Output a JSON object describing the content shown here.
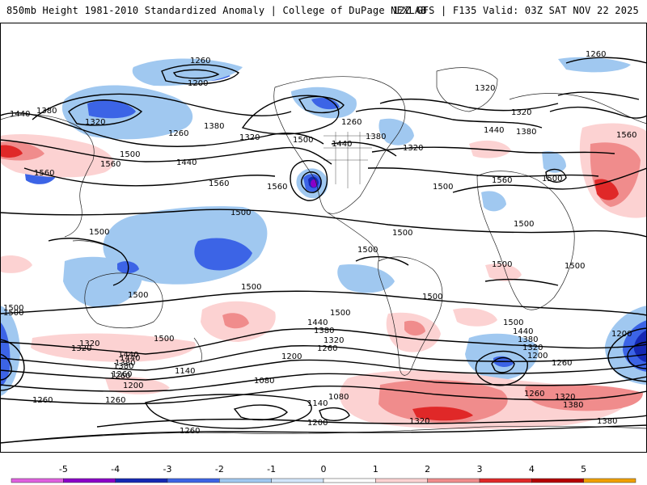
{
  "header": {
    "left": "850mb Height 1981-2010 Standardized Anomaly | College of DuPage NEXLAB",
    "right": "12Z GFS | F135 Valid: 03Z SAT NOV 22 2025"
  },
  "colorbar": {
    "ticks": [
      "-5",
      "-4",
      "-3",
      "-2",
      "-1",
      "0",
      "1",
      "2",
      "3",
      "4",
      "5"
    ],
    "colors": [
      "#e060e0",
      "#8a00c8",
      "#1428b4",
      "#3c64e6",
      "#a0c8f0",
      "#d2e6fa",
      "#ffffff",
      "#fcd2d2",
      "#f08c8c",
      "#e02828",
      "#b40000",
      "#f0a000"
    ]
  },
  "contour_labels": {
    "l1260a": "1260",
    "l1200a": "1200",
    "l1440a": "1440",
    "l1380a": "1380",
    "l1320a": "1320",
    "l1260b": "1260",
    "l1380b": "1380",
    "l1320b": "1320",
    "l1260c": "1260",
    "l1560a": "1560",
    "l1560b": "1560",
    "l1500a": "1500",
    "l1440b": "1440",
    "l1560c": "1560",
    "l1560d": "1560",
    "l1500b": "1500",
    "l1440c": "1440",
    "l1380c": "1380",
    "l1320c": "1320",
    "l1500c": "1500",
    "l1320d": "1320",
    "l1320e": "1320",
    "l1440d": "1440",
    "l1380d": "1380",
    "l1260d": "1260",
    "l1560e": "1560",
    "l1560f": "1560",
    "l1500d": "1500",
    "l1500e": "1500",
    "l1500f": "1500",
    "l1500g": "1500",
    "l1500h": "1500",
    "l1500i": "1500",
    "l1500j": "1500",
    "l1500k": "1500",
    "l1500l": "1500",
    "l1500m": "1500",
    "l1500n": "1500",
    "l1500o": "1500",
    "l1500p": "1500",
    "l1440e": "1440",
    "l1380e": "1380",
    "l1320f": "1320",
    "l1260e": "1260",
    "l1500q": "1500",
    "l1440f": "1440",
    "l1380f": "1380",
    "l1320g": "1320",
    "l1200b": "1200",
    "l1260f": "1260",
    "l1140a": "1140",
    "l1080a": "1080",
    "l1140b": "1140",
    "l1080b": "1080",
    "l1200c": "1200",
    "l1260g": "1260",
    "l1200d": "1200",
    "l1260h": "1260",
    "l1500r": "1500",
    "l1440g": "1440",
    "l1380g": "1380",
    "l1320h": "1320",
    "l1200e": "1200",
    "l1260i": "1260",
    "l1260j": "1260",
    "l1320i": "1320",
    "l1380h": "1380",
    "l1380i": "1380",
    "l1320j": "1320",
    "l1500s": "1500",
    "l1440h": "1440",
    "l1380j": "1380",
    "l1320k": "1320",
    "l1260k": "1260",
    "l1200f": "1200",
    "l1260l": "1260"
  }
}
